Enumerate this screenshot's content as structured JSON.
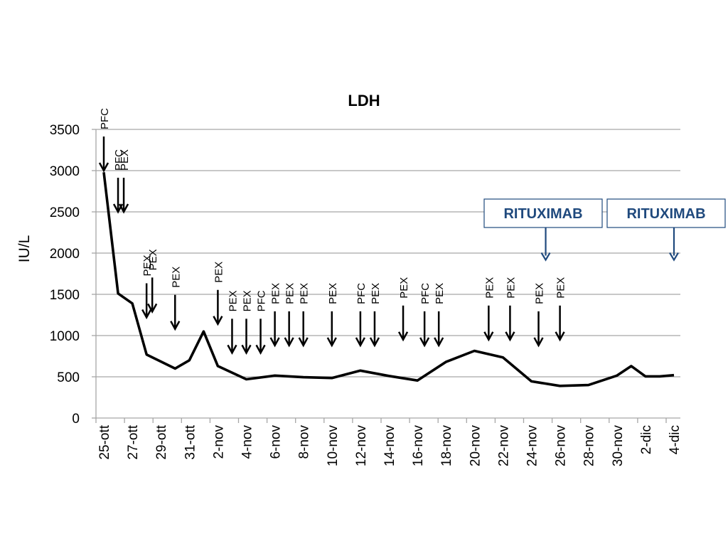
{
  "chart_data": {
    "type": "line",
    "title": "LDH",
    "ylabel": "IU/L",
    "xlabel": "",
    "ylim": [
      0,
      3500
    ],
    "yticks": [
      0,
      500,
      1000,
      1500,
      2000,
      2500,
      3000,
      3500
    ],
    "grid": true,
    "x_tick_labels": [
      "25-ott",
      "27-ott",
      "29-ott",
      "31-ott",
      "2-nov",
      "4-nov",
      "6-nov",
      "8-nov",
      "10-nov",
      "12-nov",
      "14-nov",
      "16-nov",
      "18-nov",
      "20-nov",
      "22-nov",
      "24-nov",
      "26-nov",
      "28-nov",
      "30-nov",
      "2-dic",
      "4-dic"
    ],
    "series": [
      {
        "values": [
          {
            "x": "25-ott",
            "y": 2980
          },
          {
            "x": "26-ott",
            "y": 1510
          },
          {
            "x": "27-ott",
            "y": 1390
          },
          {
            "x": "28-ott",
            "y": 770
          },
          {
            "x": "30-ott",
            "y": 600
          },
          {
            "x": "31-ott",
            "y": 700
          },
          {
            "x": "1-nov",
            "y": 1050
          },
          {
            "x": "2-nov",
            "y": 630
          },
          {
            "x": "4-nov",
            "y": 470
          },
          {
            "x": "6-nov",
            "y": 515
          },
          {
            "x": "8-nov",
            "y": 495
          },
          {
            "x": "10-nov",
            "y": 485
          },
          {
            "x": "12-nov",
            "y": 575
          },
          {
            "x": "14-nov",
            "y": 510
          },
          {
            "x": "16-nov",
            "y": 455
          },
          {
            "x": "18-nov",
            "y": 680
          },
          {
            "x": "20-nov",
            "y": 815
          },
          {
            "x": "22-nov",
            "y": 735
          },
          {
            "x": "24-nov",
            "y": 445
          },
          {
            "x": "26-nov",
            "y": 390
          },
          {
            "x": "28-nov",
            "y": 400
          },
          {
            "x": "30-nov",
            "y": 515
          },
          {
            "x": "1-dic",
            "y": 630
          },
          {
            "x": "2-dic",
            "y": 505
          },
          {
            "x": "3-dic",
            "y": 505
          },
          {
            "x": "4-dic",
            "y": 520
          }
        ]
      }
    ],
    "annotations": [
      {
        "labels": [
          "PFC"
        ],
        "date": "25-ott",
        "value": 3000
      },
      {
        "labels": [
          "PFC"
        ],
        "date": "26-ott",
        "value": 2500
      },
      {
        "labels": [
          "PEX"
        ],
        "date": "26.4-ott",
        "value": 2500
      },
      {
        "labels": [
          "PEX"
        ],
        "date": "28-ott",
        "value": 1220
      },
      {
        "labels": [
          "PEX"
        ],
        "date": "28.4-ott",
        "value": 1290
      },
      {
        "labels": [
          "PEX"
        ],
        "date": "30-ott",
        "value": 1080
      },
      {
        "labels": [
          "PEX"
        ],
        "date": "2-nov",
        "value": 1140
      },
      {
        "labels": [
          "PEX"
        ],
        "date": "3-nov",
        "value": 790
      },
      {
        "labels": [
          "PEX"
        ],
        "date": "4-nov",
        "value": 790
      },
      {
        "labels": [
          "PFC"
        ],
        "date": "5-nov",
        "value": 790
      },
      {
        "labels": [
          "PEX"
        ],
        "date": "6-nov",
        "value": 880
      },
      {
        "labels": [
          "PEX"
        ],
        "date": "7-nov",
        "value": 880
      },
      {
        "labels": [
          "PEX"
        ],
        "date": "8-nov",
        "value": 880
      },
      {
        "labels": [
          "PEX"
        ],
        "date": "10-nov",
        "value": 880
      },
      {
        "labels": [
          "PFC"
        ],
        "date": "12-nov",
        "value": 880
      },
      {
        "labels": [
          "PEX"
        ],
        "date": "13-nov",
        "value": 880
      },
      {
        "labels": [
          "PEX"
        ],
        "date": "15-nov",
        "value": 950
      },
      {
        "labels": [
          "PFC"
        ],
        "date": "16.5-nov",
        "value": 880
      },
      {
        "labels": [
          "PEX"
        ],
        "date": "17.5-nov",
        "value": 880
      },
      {
        "labels": [
          "PEX"
        ],
        "date": "21-nov",
        "value": 950
      },
      {
        "labels": [
          "PEX"
        ],
        "date": "22.5-nov",
        "value": 950
      },
      {
        "labels": [
          "PEX"
        ],
        "date": "24.5-nov",
        "value": 880
      },
      {
        "labels": [
          "PEX"
        ],
        "date": "26-nov",
        "value": 950
      },
      {
        "labels": [
          "RITUXIMAB"
        ],
        "date": "25-nov",
        "value": 1900
      },
      {
        "labels": [
          "RITUXIMAB"
        ],
        "date": "4-dic",
        "value": 1900
      }
    ]
  },
  "colors": {
    "line": "#000000",
    "grid": "#a6a6a6",
    "rituximab": "#1f497d"
  }
}
